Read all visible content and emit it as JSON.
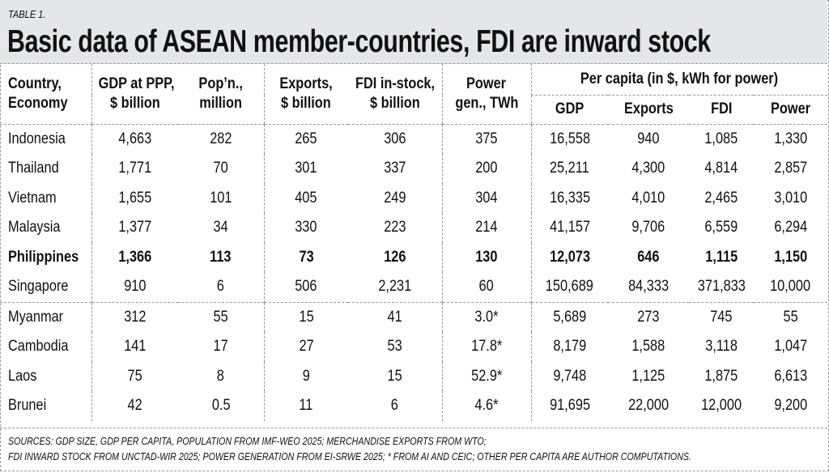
{
  "label": "TABLE 1.",
  "title": "Basic data of ASEAN member-countries, FDI are inward stock",
  "headers": {
    "country": [
      "Country,",
      "Economy"
    ],
    "gdp": [
      "GDP at PPP,",
      "$ billion"
    ],
    "pop": [
      "Pop’n.,",
      "million"
    ],
    "exports": [
      "Exports,",
      "$ billion"
    ],
    "fdi": [
      "FDI in-stock,",
      "$ billion"
    ],
    "power": [
      "Power",
      "gen., TWh"
    ],
    "per_capita": "Per capita (in $, kWh for power)",
    "pc_sub": [
      "GDP",
      "Exports",
      "FDI",
      "Power"
    ]
  },
  "rows": [
    [
      "Indonesia",
      "4,663",
      "282",
      "265",
      "306",
      "375",
      "16,558",
      "940",
      "1,085",
      "1,330"
    ],
    [
      "Thailand",
      "1,771",
      "70",
      "301",
      "337",
      "200",
      "25,211",
      "4,300",
      "4,814",
      "2,857"
    ],
    [
      "Vietnam",
      "1,655",
      "101",
      "405",
      "249",
      "304",
      "16,335",
      "4,010",
      "2,465",
      "3,010"
    ],
    [
      "Malaysia",
      "1,377",
      "34",
      "330",
      "223",
      "214",
      "41,157",
      "9,706",
      "6,559",
      "6,294"
    ],
    [
      "Philippines",
      "1,366",
      "113",
      "73",
      "126",
      "130",
      "12,073",
      "646",
      "1,115",
      "1,150"
    ],
    [
      "Singapore",
      "910",
      "6",
      "506",
      "2,231",
      "60",
      "150,689",
      "84,333",
      "371,833",
      "10,000"
    ],
    [
      "Myanmar",
      "312",
      "55",
      "15",
      "41",
      "3.0*",
      "5,689",
      "273",
      "745",
      "55"
    ],
    [
      "Cambodia",
      "141",
      "17",
      "27",
      "53",
      "17.8*",
      "8,179",
      "1,588",
      "3,118",
      "1,047"
    ],
    [
      "Laos",
      "75",
      "8",
      "9",
      "15",
      "52.9*",
      "9,748",
      "1,125",
      "1,875",
      "6,613"
    ],
    [
      "Brunei",
      "42",
      "0.5",
      "11",
      "6",
      "4.6*",
      "91,695",
      "22,000",
      "12,000",
      "9,200"
    ]
  ],
  "highlight_row": "Philippines",
  "footer": [
    "SOURCES: GDP SIZE, GDP PER CAPITA, POPULATION FROM IMF-WEO 2025; MERCHANDISE EXPORTS FROM WTO;",
    "FDI INWARD STOCK FROM UNCTAD-WIR 2025; POWER GENERATION FROM EI-SRWE 2025; * FROM AI AND CEIC; OTHER PER CAPITA ARE AUTHOR COMPUTATIONS."
  ],
  "colors": {
    "title_bg": "#e4e6e7",
    "rule": "#999999"
  }
}
